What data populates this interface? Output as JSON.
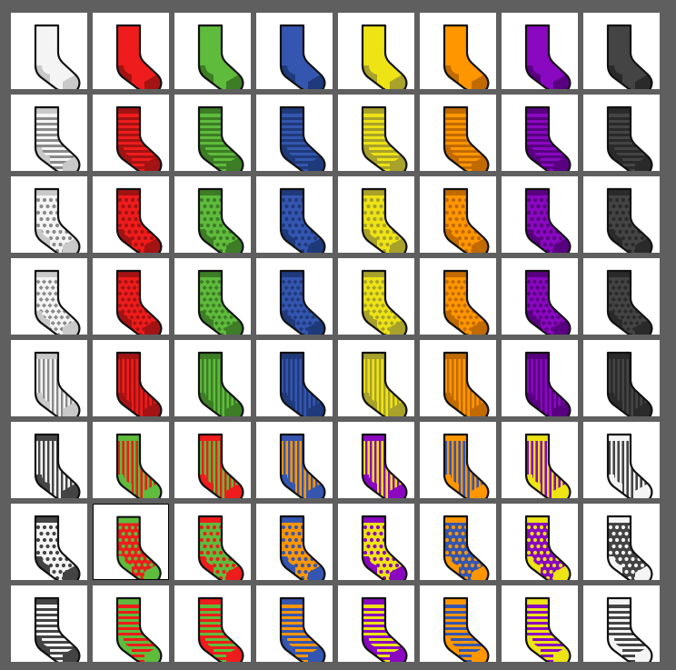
{
  "palette": {
    "white": {
      "base": "#f4f4f4",
      "dark": "#c9c9c9",
      "pattern": "#8a8a8a"
    },
    "red": {
      "base": "#ee1c1c",
      "dark": "#a31313",
      "pattern": "#a31313"
    },
    "green": {
      "base": "#5fbb3c",
      "dark": "#3c7d25",
      "pattern": "#3c7d25"
    },
    "blue": {
      "base": "#3456b0",
      "dark": "#1f3a7a",
      "pattern": "#1f3a7a"
    },
    "yellow": {
      "base": "#ede315",
      "dark": "#a8a12a",
      "pattern": "#a8a12a"
    },
    "orange": {
      "base": "#ff9600",
      "dark": "#c06a00",
      "pattern": "#c06a00"
    },
    "purple": {
      "base": "#8a08c0",
      "dark": "#580080",
      "pattern": "#580080"
    },
    "gray": {
      "base": "#444444",
      "dark": "#2a2a2a",
      "pattern": "#2a2a2a"
    }
  },
  "rows": [
    {
      "pattern": "plain",
      "cells": [
        [
          "white",
          "white"
        ],
        [
          "red",
          "red"
        ],
        [
          "green",
          "green"
        ],
        [
          "blue",
          "blue"
        ],
        [
          "yellow",
          "yellow"
        ],
        [
          "orange",
          "orange"
        ],
        [
          "purple",
          "purple"
        ],
        [
          "gray",
          "gray"
        ]
      ]
    },
    {
      "pattern": "stripes",
      "cells": [
        [
          "white",
          "white"
        ],
        [
          "red",
          "red"
        ],
        [
          "green",
          "green"
        ],
        [
          "blue",
          "blue"
        ],
        [
          "yellow",
          "yellow"
        ],
        [
          "orange",
          "orange"
        ],
        [
          "purple",
          "purple"
        ],
        [
          "gray",
          "gray"
        ]
      ]
    },
    {
      "pattern": "dots",
      "cells": [
        [
          "white",
          "white"
        ],
        [
          "red",
          "red"
        ],
        [
          "green",
          "green"
        ],
        [
          "blue",
          "blue"
        ],
        [
          "yellow",
          "yellow"
        ],
        [
          "orange",
          "orange"
        ],
        [
          "purple",
          "purple"
        ],
        [
          "gray",
          "gray"
        ]
      ]
    },
    {
      "pattern": "diamonds",
      "cells": [
        [
          "white",
          "white"
        ],
        [
          "red",
          "red"
        ],
        [
          "green",
          "green"
        ],
        [
          "blue",
          "blue"
        ],
        [
          "yellow",
          "yellow"
        ],
        [
          "orange",
          "orange"
        ],
        [
          "purple",
          "purple"
        ],
        [
          "gray",
          "gray"
        ]
      ]
    },
    {
      "pattern": "vstripes",
      "cells": [
        [
          "white",
          "white"
        ],
        [
          "red",
          "red"
        ],
        [
          "green",
          "green"
        ],
        [
          "blue",
          "blue"
        ],
        [
          "yellow",
          "yellow"
        ],
        [
          "orange",
          "orange"
        ],
        [
          "purple",
          "purple"
        ],
        [
          "gray",
          "gray"
        ]
      ]
    },
    {
      "pattern": "vstripes",
      "cells": [
        [
          "white",
          "gray"
        ],
        [
          "red",
          "green"
        ],
        [
          "green",
          "red"
        ],
        [
          "orange",
          "blue"
        ],
        [
          "yellow",
          "purple"
        ],
        [
          "blue",
          "orange"
        ],
        [
          "purple",
          "yellow"
        ],
        [
          "gray",
          "white"
        ]
      ]
    },
    {
      "pattern": "dots",
      "cells": [
        [
          "white",
          "gray"
        ],
        [
          "red",
          "green"
        ],
        [
          "green",
          "red"
        ],
        [
          "orange",
          "blue"
        ],
        [
          "yellow",
          "purple"
        ],
        [
          "blue",
          "orange"
        ],
        [
          "purple",
          "yellow"
        ],
        [
          "gray",
          "white"
        ]
      ]
    },
    {
      "pattern": "stripes",
      "cells": [
        [
          "white",
          "gray"
        ],
        [
          "red",
          "green"
        ],
        [
          "green",
          "red"
        ],
        [
          "orange",
          "blue"
        ],
        [
          "yellow",
          "purple"
        ],
        [
          "blue",
          "orange"
        ],
        [
          "purple",
          "yellow"
        ],
        [
          "gray",
          "white"
        ]
      ]
    }
  ],
  "selected": {
    "row": 6,
    "col": 1
  }
}
